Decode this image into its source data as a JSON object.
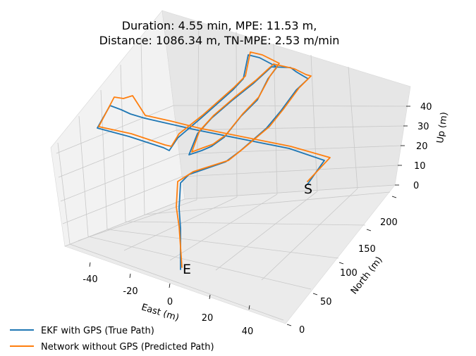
{
  "title_line1": "Duration: 4.55 min, MPE: 11.53 m,",
  "title_line2": "Distance: 1086.34 m, TN-MPE: 2.53 m/min",
  "chart_data": {
    "type": "line",
    "projection": "3d",
    "title": "Duration: 4.55 min, MPE: 11.53 m, Distance: 1086.34 m, TN-MPE: 2.53 m/min",
    "xlabel": "East (m)",
    "ylabel": "North (m)",
    "zlabel": "Up (m)",
    "xticks": [
      -40,
      -20,
      0,
      20,
      40
    ],
    "yticks": [
      0,
      50,
      100,
      150,
      200
    ],
    "zticks": [
      0,
      10,
      20,
      30,
      40
    ],
    "annotations": [
      {
        "text": "S"
      },
      {
        "text": "E"
      }
    ],
    "legend": "bottom-left",
    "grid": true,
    "colors": {
      "true_path": "#1f77b4",
      "predicted_path": "#ff7f0e"
    },
    "series": [
      {
        "name": "EKF with GPS (True Path)",
        "color": "#1f77b4"
      },
      {
        "name": "Network without GPS (Predicted Path)",
        "color": "#ff7f0e"
      }
    ]
  }
}
